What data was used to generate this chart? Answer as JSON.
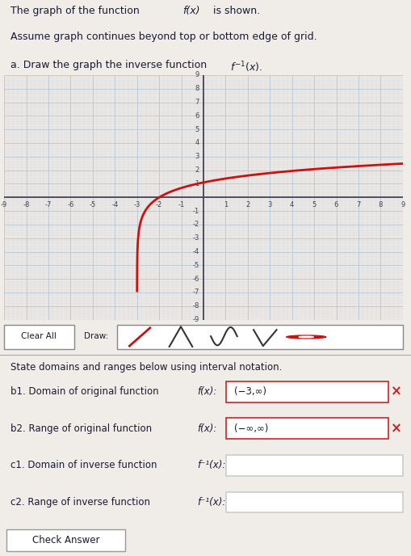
{
  "grid_min": -9,
  "grid_max": 9,
  "curve_color": "#cc1111",
  "background_color": "#f0ece8",
  "grid_color": "#b8c8d8",
  "grid_minor_color": "#d0dce8",
  "axis_color": "#444455",
  "text_color": "#1a1a33",
  "graph_bg": "#ede8e4",
  "title1": "The graph of the function ",
  "title1_italic": "f(x)",
  "title1_end": " is shown.",
  "title2": "Assume graph continues beyond top or bottom edge of grid.",
  "title3_start": "a. Draw the graph the inverse function ",
  "title3_math": "f ⁻¹(x).",
  "b1_label": "b1. Domain of original function ",
  "b1_label_italic": "f(x):",
  "b1_value": "(−3,∞)",
  "b2_label": "b2. Range of original function ",
  "b2_label_italic": "f(x):",
  "b2_value": "(−∞,∞)",
  "c1_label": "c1. Domain of inverse function ",
  "c1_math": "f ⁻¹(x):",
  "c2_label": "c2. Range of inverse function ",
  "c2_math": "f ⁻¹(x):",
  "state_label": "State domains and ranges below using interval notation.",
  "check_label": "Check Answer",
  "clearall_label": "Clear All",
  "draw_label": "Draw:"
}
